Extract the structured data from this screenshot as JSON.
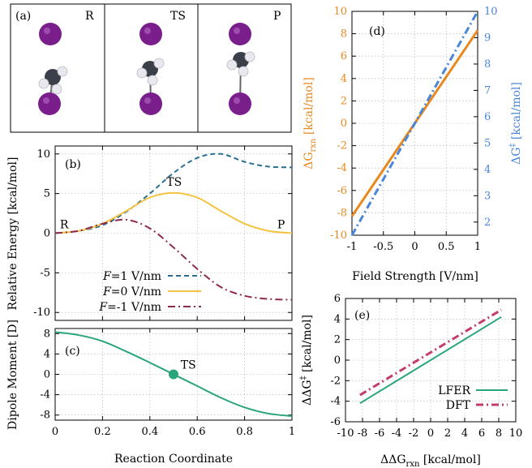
{
  "colors": {
    "f_pos": "#2a6f8f",
    "f_zero": "#f5c342",
    "f_neg": "#8e2b4c",
    "dipole": "#2aa57a",
    "dgrxn": "#e8891f",
    "dgts": "#4a86d8",
    "lfer": "#2aa57a",
    "dft": "#c43d6a",
    "atom_i": "#7a1e8c",
    "atom_c": "#3a3f4a",
    "atom_h": "#e8e8ee"
  },
  "chart_data": [
    {
      "id": "a",
      "type": "molecule-panels",
      "panel_label": "(a)",
      "panels": [
        {
          "label": "R"
        },
        {
          "label": "TS"
        },
        {
          "label": "P"
        }
      ]
    },
    {
      "id": "b",
      "type": "line",
      "panel_label": "(b)",
      "ylabel": "Relative Energy [kcal/mol]",
      "xlim": [
        0,
        1
      ],
      "ylim": [
        -11,
        11
      ],
      "yticks": [
        -10,
        -5,
        0,
        5,
        10
      ],
      "annotations": [
        {
          "text": "R",
          "x": 0.02,
          "y": 0.6
        },
        {
          "text": "TS",
          "x": 0.47,
          "y": 6.0
        },
        {
          "text": "P",
          "x": 0.97,
          "y": 0.6
        }
      ],
      "legend": "bottom-left",
      "series": [
        {
          "name": "F=1 V/nm",
          "name_prefix": "F",
          "name_rest": "=1 V/nm",
          "style": "dashed",
          "color_key": "f_pos",
          "x": [
            0,
            0.1,
            0.2,
            0.3,
            0.4,
            0.5,
            0.6,
            0.7,
            0.8,
            0.9,
            1.0
          ],
          "y": [
            0,
            0.3,
            1.0,
            2.7,
            5.0,
            7.6,
            9.5,
            10.0,
            9.0,
            8.4,
            8.3
          ]
        },
        {
          "name": "F=0 V/nm",
          "name_prefix": "F",
          "name_rest": "=0 V/nm",
          "style": "solid",
          "color_key": "f_zero",
          "x": [
            0,
            0.1,
            0.2,
            0.3,
            0.4,
            0.5,
            0.6,
            0.7,
            0.8,
            0.9,
            1.0
          ],
          "y": [
            0,
            0.3,
            1.2,
            2.8,
            4.5,
            5.1,
            4.5,
            2.8,
            1.2,
            0.3,
            0
          ]
        },
        {
          "name": "F=-1 V/nm",
          "name_prefix": "F",
          "name_rest": "=-1 V/nm",
          "style": "dashdot",
          "color_key": "f_neg",
          "x": [
            0,
            0.1,
            0.2,
            0.3,
            0.4,
            0.5,
            0.6,
            0.7,
            0.8,
            0.9,
            1.0
          ],
          "y": [
            0,
            0.3,
            1.2,
            1.7,
            0.6,
            -1.8,
            -4.5,
            -6.8,
            -7.9,
            -8.3,
            -8.4
          ]
        }
      ]
    },
    {
      "id": "c",
      "type": "line",
      "panel_label": "(c)",
      "ylabel": "Dipole Moment [D]",
      "xlabel": "Reaction Coordinate",
      "xlim": [
        0,
        1
      ],
      "ylim": [
        -9,
        9
      ],
      "xticks": [
        0,
        0.2,
        0.4,
        0.6,
        0.8,
        1
      ],
      "yticks": [
        -8,
        -4,
        0,
        4,
        8
      ],
      "annotations": [
        {
          "text": "TS",
          "x": 0.53,
          "y": 1.1
        }
      ],
      "marker": {
        "x": 0.5,
        "y": 0
      },
      "series": [
        {
          "color_key": "dipole",
          "style": "solid",
          "x": [
            0,
            0.1,
            0.2,
            0.3,
            0.4,
            0.5,
            0.6,
            0.7,
            0.8,
            0.9,
            1.0
          ],
          "y": [
            8.3,
            7.7,
            6.5,
            4.5,
            2.3,
            0,
            -2.3,
            -4.6,
            -6.5,
            -7.7,
            -8.2
          ]
        }
      ]
    },
    {
      "id": "d",
      "type": "line",
      "panel_label": "(d)",
      "xlabel": "Field Strength [V/nm]",
      "ylabel_left_main": "ΔG",
      "ylabel_left_sub": "rxn",
      "ylabel_left_rest": " [kcal/mol]",
      "ylabel_right_main": "ΔG",
      "ylabel_right_sup": "‡",
      "ylabel_right_rest": " [kcal/mol]",
      "xlim": [
        -1,
        1
      ],
      "ylim_left": [
        -10,
        10
      ],
      "ylim_right": [
        1.5,
        10
      ],
      "xticks": [
        -1,
        -0.5,
        0,
        0.5,
        1
      ],
      "yticks_left": [
        -10,
        -8,
        -6,
        -4,
        -2,
        0,
        2,
        4,
        6,
        8,
        10
      ],
      "yticks_right": [
        2,
        3,
        4,
        5,
        6,
        7,
        8,
        9,
        10
      ],
      "series": [
        {
          "axis": "left",
          "color_key": "dgrxn",
          "style": "solid",
          "x": [
            -1,
            1
          ],
          "y": [
            -8.3,
            8.3
          ]
        },
        {
          "axis": "right",
          "color_key": "dgts",
          "style": "dashdot",
          "x": [
            -1,
            1
          ],
          "y": [
            1.5,
            10
          ]
        }
      ]
    },
    {
      "id": "e",
      "type": "line",
      "panel_label": "(e)",
      "xlabel_main": "ΔΔG",
      "xlabel_sub": "rxn",
      "xlabel_rest": "  [kcal/mol]",
      "ylabel_main": "ΔΔG",
      "ylabel_sup": "‡",
      "ylabel_rest": " [kcal/mol]",
      "xlim": [
        -10,
        10
      ],
      "ylim": [
        -6,
        6
      ],
      "xticks": [
        -10,
        -8,
        -6,
        -4,
        -2,
        0,
        2,
        4,
        6,
        8,
        10
      ],
      "yticks": [
        -6,
        -4,
        -2,
        0,
        2,
        4,
        6
      ],
      "legend": "bottom-right",
      "series": [
        {
          "name": "LFER",
          "color_key": "lfer",
          "style": "solid",
          "x": [
            -8.3,
            8.3
          ],
          "y": [
            -4.2,
            4.2
          ]
        },
        {
          "name": "DFT",
          "color_key": "dft",
          "style": "dashdot",
          "x": [
            -8.3,
            8.3
          ],
          "y": [
            -3.4,
            4.9
          ]
        }
      ]
    }
  ]
}
